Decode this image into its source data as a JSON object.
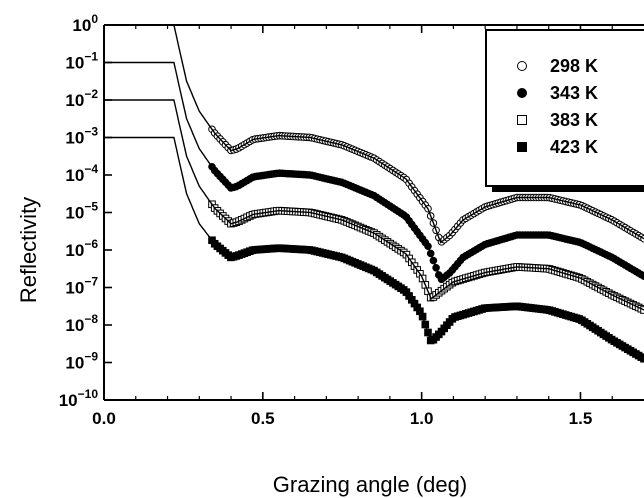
{
  "chart_data": {
    "type": "scatter",
    "title": "",
    "xlabel": "Grazing angle (deg)",
    "ylabel": "Reflectivity",
    "xlim": [
      0,
      1.7
    ],
    "ylim_exponent": [
      -10,
      0
    ],
    "yscale": "log",
    "xticks": [
      "0.0",
      "0.5",
      "1.0",
      "1.5"
    ],
    "xtick_values": [
      0,
      0.5,
      1.0,
      1.5
    ],
    "ytick_exponents": [
      -10,
      -9,
      -8,
      -7,
      -6,
      -5,
      -4,
      -3,
      -2,
      -1,
      0
    ],
    "legend_placement": "top-right",
    "series": [
      {
        "name": "298 K",
        "marker": "open-circle",
        "offset_decades": 0,
        "curve": [
          [
            0,
            0
          ],
          [
            0.22,
            0
          ],
          [
            0.26,
            -1.5
          ],
          [
            0.3,
            -2.3
          ],
          [
            0.35,
            -2.9
          ],
          [
            0.4,
            -3.35
          ],
          [
            0.42,
            -3.3
          ],
          [
            0.47,
            -3.05
          ],
          [
            0.55,
            -2.95
          ],
          [
            0.65,
            -3.0
          ],
          [
            0.75,
            -3.2
          ],
          [
            0.85,
            -3.55
          ],
          [
            0.95,
            -4.1
          ],
          [
            1.02,
            -4.9
          ],
          [
            1.06,
            -5.8
          ],
          [
            1.09,
            -5.6
          ],
          [
            1.13,
            -5.2
          ],
          [
            1.2,
            -4.85
          ],
          [
            1.3,
            -4.6
          ],
          [
            1.4,
            -4.6
          ],
          [
            1.5,
            -4.8
          ],
          [
            1.6,
            -5.2
          ],
          [
            1.7,
            -5.7
          ]
        ]
      },
      {
        "name": "343 K",
        "marker": "filled-circle",
        "offset_decades": -1,
        "curve": [
          [
            0,
            0
          ],
          [
            0.22,
            0
          ],
          [
            0.26,
            -1.5
          ],
          [
            0.3,
            -2.3
          ],
          [
            0.35,
            -2.9
          ],
          [
            0.4,
            -3.35
          ],
          [
            0.42,
            -3.3
          ],
          [
            0.47,
            -3.05
          ],
          [
            0.55,
            -2.95
          ],
          [
            0.65,
            -3.0
          ],
          [
            0.75,
            -3.2
          ],
          [
            0.85,
            -3.55
          ],
          [
            0.95,
            -4.1
          ],
          [
            1.02,
            -4.9
          ],
          [
            1.06,
            -5.8
          ],
          [
            1.09,
            -5.6
          ],
          [
            1.13,
            -5.2
          ],
          [
            1.2,
            -4.85
          ],
          [
            1.3,
            -4.6
          ],
          [
            1.4,
            -4.6
          ],
          [
            1.5,
            -4.8
          ],
          [
            1.6,
            -5.2
          ],
          [
            1.7,
            -5.7
          ]
        ]
      },
      {
        "name": "383 K",
        "marker": "open-square",
        "offset_decades": -2,
        "curve": [
          [
            0,
            0
          ],
          [
            0.22,
            0
          ],
          [
            0.26,
            -1.5
          ],
          [
            0.3,
            -2.3
          ],
          [
            0.35,
            -2.9
          ],
          [
            0.4,
            -3.3
          ],
          [
            0.42,
            -3.25
          ],
          [
            0.47,
            -3.05
          ],
          [
            0.55,
            -2.95
          ],
          [
            0.65,
            -3.0
          ],
          [
            0.75,
            -3.2
          ],
          [
            0.85,
            -3.55
          ],
          [
            0.95,
            -4.1
          ],
          [
            1.0,
            -4.7
          ],
          [
            1.03,
            -5.3
          ],
          [
            1.06,
            -5.1
          ],
          [
            1.1,
            -4.85
          ],
          [
            1.2,
            -4.6
          ],
          [
            1.3,
            -4.45
          ],
          [
            1.4,
            -4.5
          ],
          [
            1.5,
            -4.75
          ],
          [
            1.6,
            -5.2
          ],
          [
            1.7,
            -5.6
          ]
        ]
      },
      {
        "name": "423 K",
        "marker": "filled-square",
        "offset_decades": -3,
        "curve": [
          [
            0,
            0
          ],
          [
            0.22,
            0
          ],
          [
            0.26,
            -1.5
          ],
          [
            0.3,
            -2.3
          ],
          [
            0.35,
            -2.85
          ],
          [
            0.4,
            -3.2
          ],
          [
            0.42,
            -3.15
          ],
          [
            0.47,
            -3.0
          ],
          [
            0.55,
            -2.95
          ],
          [
            0.65,
            -3.0
          ],
          [
            0.75,
            -3.2
          ],
          [
            0.85,
            -3.55
          ],
          [
            0.95,
            -4.1
          ],
          [
            1.0,
            -4.7
          ],
          [
            1.03,
            -5.45
          ],
          [
            1.06,
            -5.2
          ],
          [
            1.1,
            -4.8
          ],
          [
            1.2,
            -4.55
          ],
          [
            1.3,
            -4.5
          ],
          [
            1.4,
            -4.6
          ],
          [
            1.5,
            -4.85
          ],
          [
            1.6,
            -5.4
          ],
          [
            1.7,
            -5.9
          ]
        ]
      }
    ]
  }
}
